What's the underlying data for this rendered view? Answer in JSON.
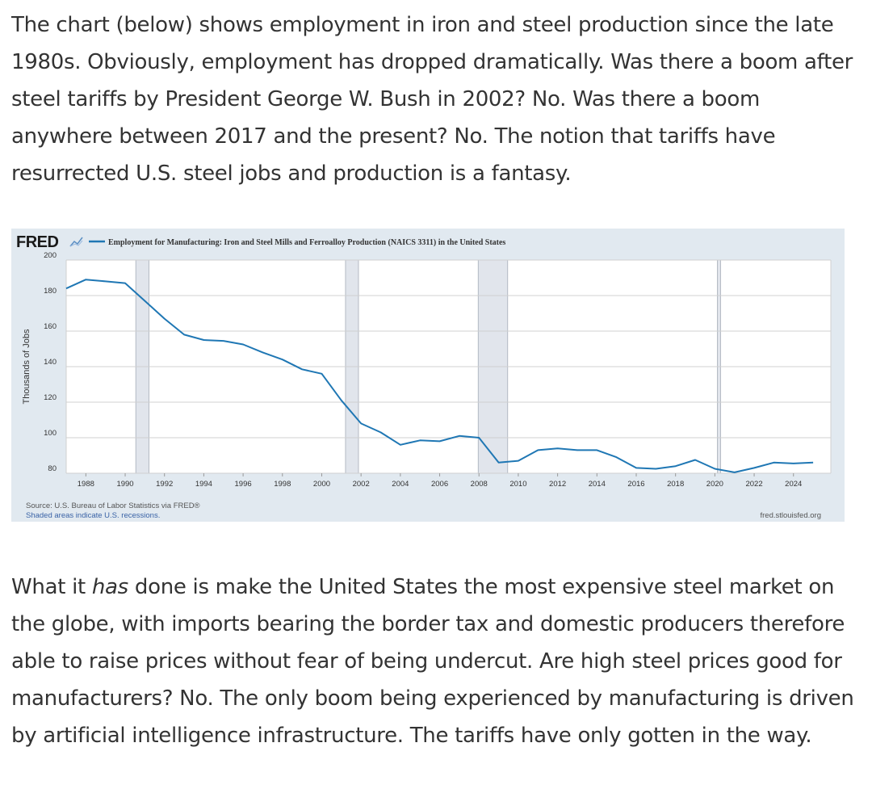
{
  "article": {
    "para1": "The chart (below) shows employment in iron and steel production since the late 1980s. Obviously, employment has dropped dramatically. Was there a boom after steel tariffs by President George W. Bush in 2002? No. Was there a boom anywhere between 2017 and the present? No. The notion that tariffs have resurrected U.S. steel jobs and production is a fantasy.",
    "para2_before": "What it ",
    "para2_emph": "has",
    "para2_after": " done is make the United States the most expensive steel market on the globe, with imports bearing the border tax and domestic producers therefore able to raise prices without fear of being undercut. Are high steel prices good for manufacturers? No. The only boom being experienced by manufacturing is driven by artificial intelligence infrastructure. The tariffs have only gotten in the way."
  },
  "chart_data": {
    "type": "line",
    "brand": "FRED",
    "series": [
      {
        "name": "Employment for Manufacturing: Iron and Steel Mills and Ferroalloy Production (NAICS 3311) in the United States",
        "color": "#1f77b4",
        "x": [
          1987,
          1988,
          1989,
          1990,
          1991,
          1992,
          1993,
          1994,
          1995,
          1996,
          1997,
          1998,
          1999,
          2000,
          2001,
          2002,
          2003,
          2004,
          2005,
          2006,
          2007,
          2008,
          2009,
          2010,
          2011,
          2012,
          2013,
          2014,
          2015,
          2016,
          2017,
          2018,
          2019,
          2020,
          2021,
          2022,
          2023,
          2024,
          2025
        ],
        "values": [
          184,
          189,
          188,
          187,
          177,
          167,
          158,
          155,
          154.5,
          152.5,
          148,
          144,
          138.5,
          136,
          121,
          108,
          103,
          96,
          98.5,
          98,
          101,
          100,
          86,
          87,
          93,
          94,
          93,
          93,
          89,
          83,
          82.5,
          84,
          87.5,
          82.5,
          80.5,
          83,
          86,
          85.5,
          86
        ]
      }
    ],
    "xlim": [
      1987,
      2025.9
    ],
    "ylim": [
      80,
      200
    ],
    "x_ticks": [
      "1988",
      "1990",
      "1992",
      "1994",
      "1996",
      "1998",
      "2000",
      "2002",
      "2004",
      "2006",
      "2008",
      "2010",
      "2012",
      "2014",
      "2016",
      "2018",
      "2020",
      "2022",
      "2024"
    ],
    "y_ticks": [
      "80",
      "100",
      "120",
      "140",
      "160",
      "180",
      "200"
    ],
    "ylabel": "Thousands of Jobs",
    "xlabel": "",
    "recessions": [
      [
        1990.54,
        1991.21
      ],
      [
        2001.21,
        2001.87
      ],
      [
        2007.96,
        2009.46
      ],
      [
        2020.13,
        2020.29
      ]
    ],
    "grid": true,
    "legend_position": "top-left",
    "source": "Source: U.S. Bureau of Labor Statistics via FRED®",
    "note": "Shaded areas indicate U.S. recessions.",
    "site": "fred.stlouisfed.org",
    "colors": {
      "background": "#e1e9f0",
      "plot": "#ffffff",
      "recession": "#e1e5ec",
      "line": "#1f77b4"
    }
  }
}
